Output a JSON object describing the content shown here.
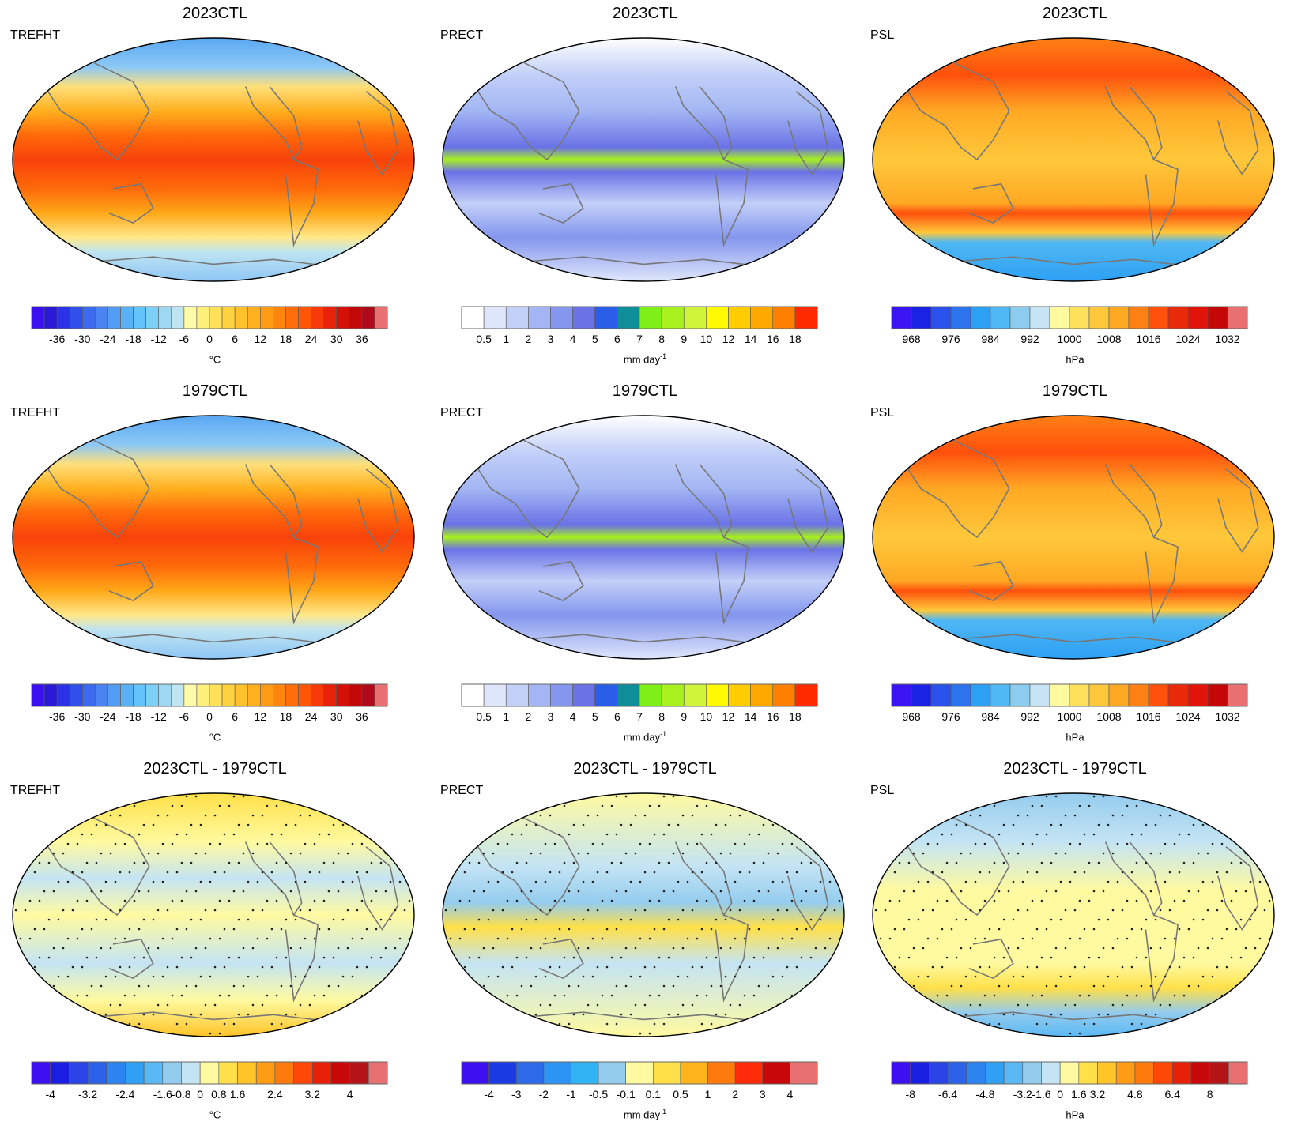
{
  "colors": {
    "ocean_dummy": "#ffffff",
    "coast": "#777777"
  },
  "panels": [
    {
      "id": "p00",
      "title": "2023CTL",
      "var": "TREFHT",
      "scheme": "temp",
      "units": "°C",
      "units_sup": "",
      "cbar": {
        "colors": [
          "#3a10f0",
          "#2a1ad8",
          "#2a34e6",
          "#3050ea",
          "#3c6aee",
          "#4a84f2",
          "#529cf4",
          "#5ab2f6",
          "#62c4f8",
          "#7ccff6",
          "#9dd8f0",
          "#bfe4f2",
          "#fffaa8",
          "#fff07c",
          "#ffe25a",
          "#ffd23e",
          "#ffc22c",
          "#ffb01e",
          "#ff9c14",
          "#ff860e",
          "#ff6e0a",
          "#ff5608",
          "#f83a08",
          "#e82208",
          "#d41008",
          "#c00808",
          "#b00a1a",
          "#e87070"
        ],
        "labels": [
          "-36",
          "-30",
          "-24",
          "-18",
          "-12",
          "-6",
          "0",
          "6",
          "12",
          "18",
          "24",
          "30",
          "36"
        ],
        "label_at": [
          2,
          4,
          6,
          8,
          10,
          12,
          14,
          16,
          18,
          20,
          22,
          24,
          26
        ]
      }
    },
    {
      "id": "p01",
      "title": "2023CTL",
      "var": "PRECT",
      "scheme": "prec",
      "units": "mm day",
      "units_sup": "-1",
      "cbar": {
        "colors": [
          "#ffffff",
          "#dfe6fb",
          "#c3d0f8",
          "#a3b6f3",
          "#8496ee",
          "#6a72e6",
          "#2a5ee8",
          "#0e8e98",
          "#7ef018",
          "#a8f01e",
          "#d0f43a",
          "#fffa00",
          "#ffcc00",
          "#ffa800",
          "#ff8000",
          "#ff2a00"
        ],
        "labels": [
          "0.5",
          "1",
          "2",
          "3",
          "4",
          "5",
          "6",
          "7",
          "8",
          "9",
          "10",
          "12",
          "14",
          "16",
          "18"
        ],
        "label_at": [
          1,
          2,
          3,
          4,
          5,
          6,
          7,
          8,
          9,
          10,
          11,
          12,
          13,
          14,
          15
        ]
      }
    },
    {
      "id": "p02",
      "title": "2023CTL",
      "var": "PSL",
      "scheme": "psl",
      "units": "hPa",
      "units_sup": "",
      "cbar": {
        "colors": [
          "#3a14f2",
          "#1a22e4",
          "#2a52ea",
          "#2c74ee",
          "#2ca0f4",
          "#50b8f4",
          "#8cccee",
          "#c6e4f4",
          "#fffaa0",
          "#ffe05a",
          "#ffc83a",
          "#ffa824",
          "#ff8014",
          "#ff500c",
          "#e82a08",
          "#e01408",
          "#c40808",
          "#e87070"
        ],
        "labels": [
          "968",
          "976",
          "984",
          "992",
          "1000",
          "1008",
          "1016",
          "1024",
          "1032"
        ],
        "label_at": [
          1,
          3,
          5,
          7,
          9,
          11,
          13,
          15,
          17
        ]
      }
    },
    {
      "id": "p10",
      "title": "1979CTL",
      "var": "TREFHT",
      "scheme": "temp",
      "units": "°C",
      "units_sup": "",
      "cbar": {
        "colors": [
          "#3a10f0",
          "#2a1ad8",
          "#2a34e6",
          "#3050ea",
          "#3c6aee",
          "#4a84f2",
          "#529cf4",
          "#5ab2f6",
          "#62c4f8",
          "#7ccff6",
          "#9dd8f0",
          "#bfe4f2",
          "#fffaa8",
          "#fff07c",
          "#ffe25a",
          "#ffd23e",
          "#ffc22c",
          "#ffb01e",
          "#ff9c14",
          "#ff860e",
          "#ff6e0a",
          "#ff5608",
          "#f83a08",
          "#e82208",
          "#d41008",
          "#c00808",
          "#b00a1a",
          "#e87070"
        ],
        "labels": [
          "-36",
          "-30",
          "-24",
          "-18",
          "-12",
          "-6",
          "0",
          "6",
          "12",
          "18",
          "24",
          "30",
          "36"
        ],
        "label_at": [
          2,
          4,
          6,
          8,
          10,
          12,
          14,
          16,
          18,
          20,
          22,
          24,
          26
        ]
      }
    },
    {
      "id": "p11",
      "title": "1979CTL",
      "var": "PRECT",
      "scheme": "prec",
      "units": "mm day",
      "units_sup": "-1",
      "cbar": {
        "colors": [
          "#ffffff",
          "#dfe6fb",
          "#c3d0f8",
          "#a3b6f3",
          "#8496ee",
          "#6a72e6",
          "#2a5ee8",
          "#0e8e98",
          "#7ef018",
          "#a8f01e",
          "#d0f43a",
          "#fffa00",
          "#ffcc00",
          "#ffa800",
          "#ff8000",
          "#ff2a00"
        ],
        "labels": [
          "0.5",
          "1",
          "2",
          "3",
          "4",
          "5",
          "6",
          "7",
          "8",
          "9",
          "10",
          "12",
          "14",
          "16",
          "18"
        ],
        "label_at": [
          1,
          2,
          3,
          4,
          5,
          6,
          7,
          8,
          9,
          10,
          11,
          12,
          13,
          14,
          15
        ]
      }
    },
    {
      "id": "p12",
      "title": "1979CTL",
      "var": "PSL",
      "scheme": "psl",
      "units": "hPa",
      "units_sup": "",
      "cbar": {
        "colors": [
          "#3a14f2",
          "#1a22e4",
          "#2a52ea",
          "#2c74ee",
          "#2ca0f4",
          "#50b8f4",
          "#8cccee",
          "#c6e4f4",
          "#fffaa0",
          "#ffe05a",
          "#ffc83a",
          "#ffa824",
          "#ff8014",
          "#ff500c",
          "#e82a08",
          "#e01408",
          "#c40808",
          "#e87070"
        ],
        "labels": [
          "968",
          "976",
          "984",
          "992",
          "1000",
          "1008",
          "1016",
          "1024",
          "1032"
        ],
        "label_at": [
          1,
          3,
          5,
          7,
          9,
          11,
          13,
          15,
          17
        ]
      }
    },
    {
      "id": "p20",
      "title": "2023CTL - 1979CTL",
      "var": "TREFHT",
      "scheme": "dtemp",
      "units": "°C",
      "units_sup": "",
      "cbar": {
        "colors": [
          "#3c10f0",
          "#1a1ee0",
          "#2a44e6",
          "#2c62ea",
          "#2c84f0",
          "#30a0f4",
          "#5ab8f4",
          "#94ccee",
          "#c4e4f4",
          "#fffaa0",
          "#ffe048",
          "#ffc428",
          "#ff9c14",
          "#ff7a0c",
          "#ff4808",
          "#e82008",
          "#c80808",
          "#b41418",
          "#e87070"
        ],
        "labels": [
          "-4",
          "-3.2",
          "-2.4",
          "-1.6",
          "-0.8",
          "0",
          "0.8",
          "1.6",
          "2.4",
          "3.2",
          "4"
        ],
        "label_at": [
          1,
          3,
          5,
          7,
          8,
          9,
          10,
          11,
          13,
          15,
          17
        ]
      }
    },
    {
      "id": "p21",
      "title": "2023CTL - 1979CTL",
      "var": "PRECT",
      "scheme": "dprec",
      "units": "mm day",
      "units_sup": "-1",
      "cbar": {
        "colors": [
          "#3c10f0",
          "#1a3ae4",
          "#2c6aea",
          "#2c94f2",
          "#30b4f4",
          "#94ccee",
          "#fffaa0",
          "#ffe048",
          "#ffb41e",
          "#ff7a0c",
          "#ff2a08",
          "#c80808",
          "#e87070"
        ],
        "labels": [
          "-4",
          "-3",
          "-2",
          "-1",
          "-0.5",
          "-0.1",
          "0.1",
          "0.5",
          "1",
          "2",
          "3",
          "4"
        ],
        "label_at": [
          1,
          2,
          3,
          4,
          5,
          6,
          7,
          8,
          9,
          10,
          11,
          12
        ]
      }
    },
    {
      "id": "p22",
      "title": "2023CTL - 1979CTL",
      "var": "PSL",
      "scheme": "dpsl",
      "units": "hPa",
      "units_sup": "",
      "cbar": {
        "colors": [
          "#3c10f0",
          "#1a1ee0",
          "#2a44e6",
          "#2c62ea",
          "#2c84f0",
          "#30a0f4",
          "#5ab8f4",
          "#94ccee",
          "#c4e4f4",
          "#fffaa0",
          "#ffe048",
          "#ffc428",
          "#ff9c14",
          "#ff7a0c",
          "#ff4808",
          "#e82008",
          "#c80808",
          "#b41418",
          "#e87070"
        ],
        "labels": [
          "-8",
          "-6.4",
          "-4.8",
          "-3.2",
          "-1.6",
          "0",
          "1.6",
          "3.2",
          "4.8",
          "6.4",
          "8"
        ],
        "label_at": [
          1,
          3,
          5,
          7,
          8,
          9,
          10,
          11,
          13,
          15,
          17
        ]
      }
    }
  ]
}
